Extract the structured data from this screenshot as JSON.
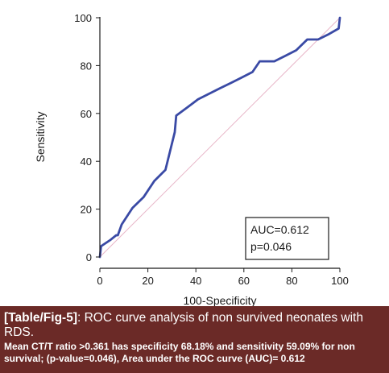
{
  "chart_data": {
    "type": "line",
    "xlabel": "100-Specificity",
    "ylabel": "Sensitivity",
    "xlim": [
      0,
      100
    ],
    "ylim": [
      0,
      100
    ],
    "x_ticks": [
      "0",
      "20",
      "40",
      "60",
      "80",
      "100"
    ],
    "y_ticks": [
      "0",
      "20",
      "40",
      "60",
      "80",
      "100"
    ],
    "grid": false,
    "series": [
      {
        "x": [
          0,
          0.5,
          4.5,
          6.8,
          7.5,
          9.1,
          13.6,
          18.2,
          22.7,
          27.3,
          31.2,
          31.8,
          36.4,
          40.9,
          45.5,
          50.0,
          54.5,
          59.1,
          63.6,
          66.6,
          72.7,
          77.3,
          81.8,
          86.4,
          90.9,
          95.5,
          99.5,
          100
        ],
        "y": [
          0,
          4.5,
          7.2,
          9.1,
          9.1,
          13.6,
          20.5,
          25.0,
          31.8,
          36.4,
          52.2,
          59.1,
          62.5,
          65.9,
          68.2,
          70.5,
          72.7,
          75.0,
          77.3,
          81.8,
          81.8,
          84.1,
          86.4,
          90.9,
          90.9,
          93.2,
          95.5,
          100
        ],
        "color": "#3a4aa5"
      }
    ],
    "reference_line": {
      "x": [
        0,
        100
      ],
      "y": [
        0,
        100
      ],
      "color": "#e8b6c8"
    },
    "annotation_box": {
      "lines": [
        "AUC=0.612",
        "p=0.046"
      ],
      "placement": "bottom-right"
    }
  },
  "caption": {
    "tag": "[Table/Fig-5]",
    "title": ": ROC curve analysis of non survived neonates with RDS.",
    "note": "Mean CT/T ratio >0.361 has specificity 68.18% and sensitivity 59.09% for non survival; (p-value=0.046), Area under the ROC curve (AUC)= 0.612"
  }
}
